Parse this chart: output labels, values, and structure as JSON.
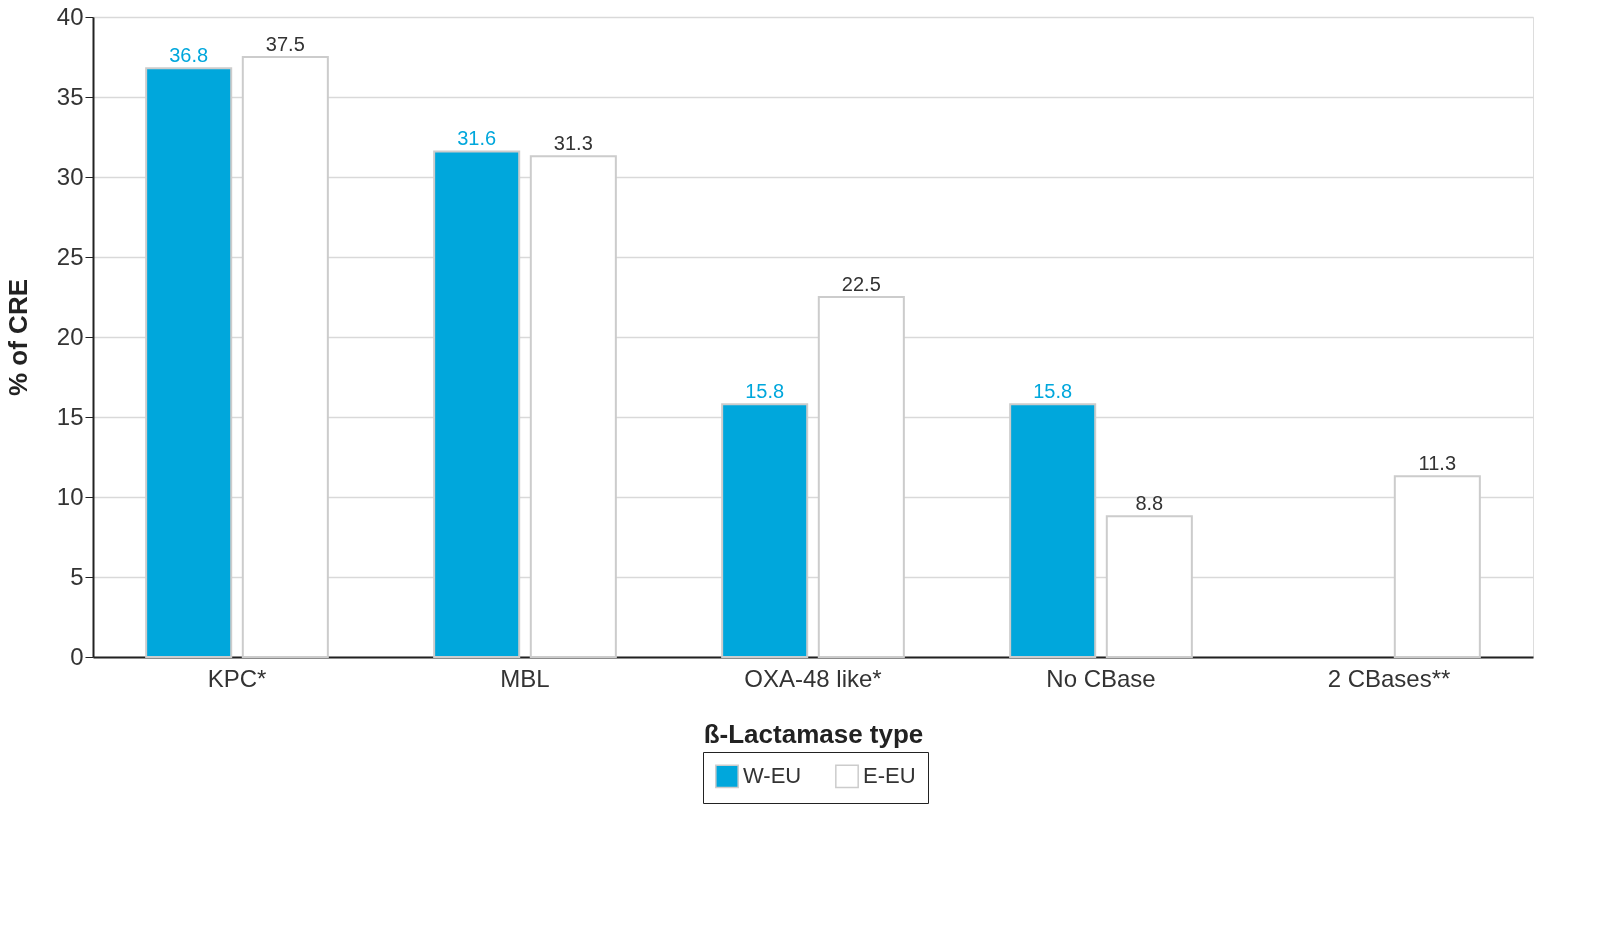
{
  "chart_data": {
    "type": "bar",
    "xlabel": "ß-Lactamase type",
    "ylabel": "% of CRE",
    "categories": [
      "KPC*",
      "MBL",
      "OXA-48 like*",
      "No CBase",
      "2 CBases**"
    ],
    "series": [
      {
        "name": "W-EU",
        "color": "#00a7dc",
        "values": [
          36.8,
          31.6,
          15.8,
          15.8,
          null
        ]
      },
      {
        "name": "E-EU",
        "color": "#ffffff",
        "values": [
          37.5,
          31.3,
          22.5,
          8.8,
          11.3
        ]
      }
    ],
    "ylim": [
      0,
      40
    ],
    "yticks": [
      0,
      5,
      10,
      15,
      20,
      25,
      30,
      35,
      40
    ],
    "grid": "y",
    "legend": "bottom",
    "data_labels": true
  }
}
